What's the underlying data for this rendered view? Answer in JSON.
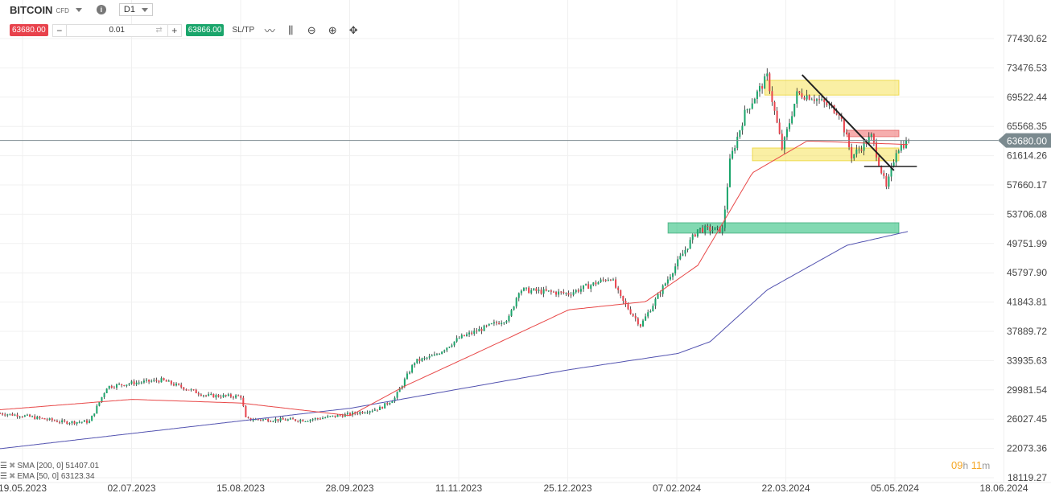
{
  "header": {
    "symbol": "BITCOIN",
    "symbol_type": "CFD",
    "timeframe": "D1",
    "info_icon": "info-icon"
  },
  "trade_bar": {
    "sell_price": "63680.00",
    "quantity": "0.01",
    "buy_price": "63866.00",
    "sltp_label": "SL/TP",
    "minus": "−",
    "plus": "+",
    "swap": "⇄"
  },
  "indicators": [
    {
      "label": "SMA [200, 0] 51407.01",
      "color": "#5353b0"
    },
    {
      "label": "EMA [50, 0] 63123.34",
      "color": "#e84848"
    }
  ],
  "timer": {
    "hours": "09",
    "h": "h",
    "minutes": "11",
    "m": "m"
  },
  "colors": {
    "bull": "#1aa56b",
    "bear": "#e8424c",
    "price_line": "#7b8a8f",
    "yellow_zone": "#f5e25a",
    "green_zone": "#2fbf7f",
    "red_zone": "#ee6a6a"
  },
  "chart_data": {
    "type": "candlestick",
    "current_price": "63680.00",
    "y_ticks": [
      "77430.62",
      "73476.53",
      "69522.44",
      "65568.35",
      "61614.26",
      "57660.17",
      "53706.08",
      "49751.99",
      "45797.90",
      "41843.81",
      "37889.72",
      "33935.63",
      "29981.54",
      "26027.45",
      "22073.36",
      "18119.27"
    ],
    "x_ticks": [
      "19.05.2023",
      "02.07.2023",
      "15.08.2023",
      "28.09.2023",
      "11.11.2023",
      "25.12.2023",
      "07.02.2024",
      "22.03.2024",
      "05.05.2024",
      "18.06.2024"
    ],
    "price_path": [
      [
        "2023-05-10",
        26800
      ],
      [
        "2023-05-19",
        26500
      ],
      [
        "2023-06-05",
        25600
      ],
      [
        "2023-06-15",
        25700
      ],
      [
        "2023-06-22",
        30400
      ],
      [
        "2023-07-02",
        30900
      ],
      [
        "2023-07-14",
        31300
      ],
      [
        "2023-08-01",
        29200
      ],
      [
        "2023-08-15",
        29100
      ],
      [
        "2023-08-17",
        26000
      ],
      [
        "2023-09-10",
        25900
      ],
      [
        "2023-09-28",
        26700
      ],
      [
        "2023-10-10",
        27500
      ],
      [
        "2023-10-16",
        28900
      ],
      [
        "2023-10-24",
        33800
      ],
      [
        "2023-11-01",
        34600
      ],
      [
        "2023-11-11",
        37000
      ],
      [
        "2023-12-01",
        39700
      ],
      [
        "2023-12-05",
        43500
      ],
      [
        "2023-12-25",
        43000
      ],
      [
        "2023-01-01",
        43000
      ],
      [
        "2024-01-11",
        45200
      ],
      [
        "2024-01-15",
        42300
      ],
      [
        "2024-01-23",
        38700
      ],
      [
        "2024-02-07",
        47300
      ],
      [
        "2024-02-15",
        51700
      ],
      [
        "2024-02-25",
        51600
      ],
      [
        "2024-02-28",
        61000
      ],
      [
        "2024-03-05",
        67400
      ],
      [
        "2024-03-14",
        72300
      ],
      [
        "2024-03-20",
        62500
      ],
      [
        "2024-03-26",
        70000
      ],
      [
        "2024-04-01",
        69600
      ],
      [
        "2024-04-12",
        67500
      ],
      [
        "2024-04-17",
        61500
      ],
      [
        "2024-04-25",
        64200
      ],
      [
        "2024-05-01",
        57100
      ],
      [
        "2024-05-05",
        62500
      ],
      [
        "2024-05-10",
        63680
      ]
    ],
    "sma200": [
      [
        "2023-05-10",
        22040
      ],
      [
        "2023-09-28",
        27500
      ],
      [
        "2023-12-25",
        32700
      ],
      [
        "2024-02-07",
        34900
      ],
      [
        "2024-02-20",
        36500
      ],
      [
        "2024-03-14",
        43500
      ],
      [
        "2024-04-15",
        49500
      ],
      [
        "2024-05-10",
        51407
      ]
    ],
    "ema50": [
      [
        "2023-05-10",
        27300
      ],
      [
        "2023-07-02",
        28700
      ],
      [
        "2023-08-15",
        28200
      ],
      [
        "2023-09-28",
        26500
      ],
      [
        "2023-10-20",
        30500
      ],
      [
        "2023-11-20",
        35300
      ],
      [
        "2023-12-25",
        40800
      ],
      [
        "2024-01-25",
        41900
      ],
      [
        "2024-02-15",
        46800
      ],
      [
        "2024-03-08",
        59300
      ],
      [
        "2024-03-30",
        63600
      ],
      [
        "2024-05-10",
        63123
      ]
    ],
    "zones": [
      {
        "color": "yellow",
        "from": "2024-03-13",
        "to": "2024-05-06",
        "low": 69800,
        "high": 71800
      },
      {
        "color": "green",
        "from": "2024-02-03",
        "to": "2024-05-06",
        "low": 51150,
        "high": 52560
      },
      {
        "color": "red",
        "from": "2024-04-15",
        "to": "2024-05-06",
        "low": 64180,
        "high": 65050
      },
      {
        "color": "yellow",
        "from": "2024-03-08",
        "to": "2024-05-06",
        "low": 60930,
        "high": 62660
      }
    ],
    "trendline": [
      [
        "2024-03-28",
        72540
      ],
      [
        "2024-05-04",
        59620
      ]
    ],
    "hline": {
      "from": "2024-04-22",
      "to": "2024-05-10",
      "price": 60160
    }
  }
}
